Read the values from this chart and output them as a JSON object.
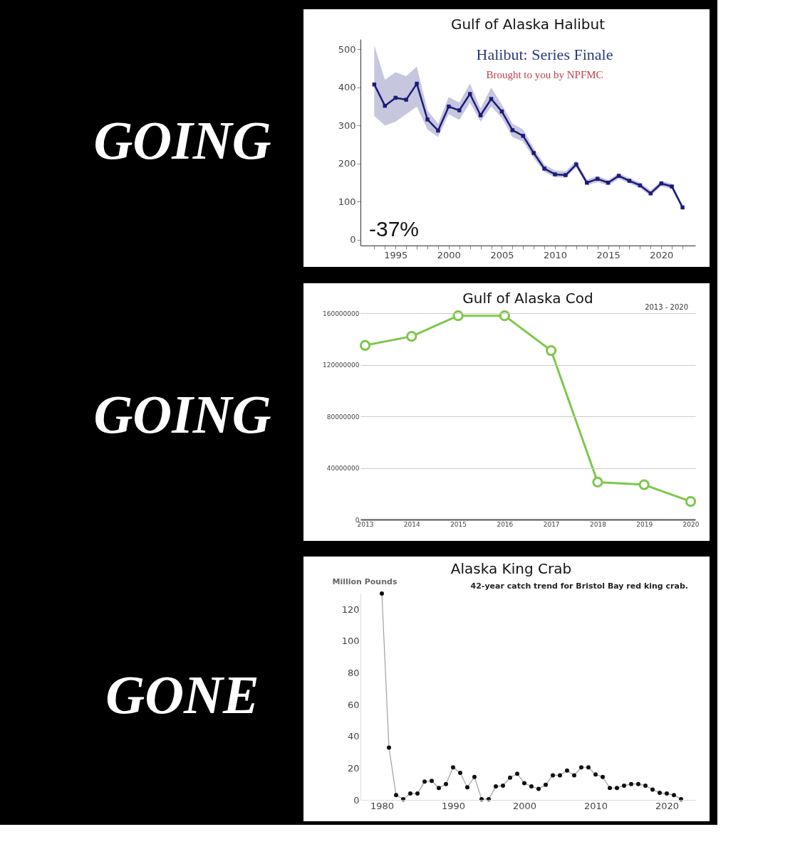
{
  "chart_data": [
    {
      "type": "line",
      "title": "Gulf of Alaska Halibut",
      "marker": "square",
      "line_style": "solid",
      "grid": false,
      "annotations": [
        "GOING",
        "Halibut: Series Finale",
        "Brought to you by NPFMC",
        "-37%"
      ],
      "x": [
        1993,
        1994,
        1995,
        1996,
        1997,
        1998,
        1999,
        2000,
        2001,
        2002,
        2003,
        2004,
        2005,
        2006,
        2007,
        2008,
        2009,
        2010,
        2011,
        2012,
        2013,
        2014,
        2015,
        2016,
        2017,
        2018,
        2019,
        2020,
        2021,
        2022
      ],
      "series": [
        {
          "color": "#1b1b7a",
          "values": [
            408,
            352,
            373,
            368,
            410,
            316,
            287,
            350,
            340,
            383,
            327,
            370,
            337,
            288,
            273,
            228,
            187,
            172,
            170,
            198,
            150,
            160,
            150,
            168,
            155,
            143,
            122,
            148,
            140,
            85
          ],
          "lower": [
            325,
            300,
            310,
            330,
            350,
            290,
            270,
            330,
            315,
            360,
            310,
            350,
            320,
            270,
            258,
            215,
            178,
            165,
            163,
            190,
            143,
            152,
            143,
            160,
            148,
            136,
            115,
            141,
            133,
            80
          ],
          "upper": [
            510,
            420,
            440,
            430,
            455,
            340,
            305,
            375,
            360,
            410,
            345,
            400,
            355,
            305,
            290,
            240,
            198,
            182,
            180,
            208,
            158,
            168,
            157,
            175,
            162,
            150,
            130,
            155,
            147,
            92
          ]
        }
      ],
      "xlim": [
        1991.7,
        2023.2
      ],
      "ylim": [
        -15,
        527
      ],
      "yticks": [
        0,
        100,
        200,
        300,
        400,
        500
      ],
      "xticks": [
        {
          "value": 1993,
          "label": null
        },
        {
          "value": 1994,
          "label": null
        },
        1995,
        {
          "value": 1996,
          "label": null
        },
        {
          "value": 1997,
          "label": null
        },
        {
          "value": 1998,
          "label": null
        },
        {
          "value": 1999,
          "label": null
        },
        2000,
        {
          "value": 2001,
          "label": null
        },
        {
          "value": 2002,
          "label": null
        },
        {
          "value": 2003,
          "label": null
        },
        {
          "value": 2004,
          "label": null
        },
        2005,
        {
          "value": 2006,
          "label": null
        },
        {
          "value": 2007,
          "label": null
        },
        {
          "value": 2008,
          "label": null
        },
        {
          "value": 2009,
          "label": null
        },
        2010,
        {
          "value": 2011,
          "label": null
        },
        {
          "value": 2012,
          "label": null
        },
        {
          "value": 2013,
          "label": null
        },
        {
          "value": 2014,
          "label": null
        },
        2015,
        {
          "value": 2016,
          "label": null
        },
        {
          "value": 2017,
          "label": null
        },
        {
          "value": 2018,
          "label": null
        },
        {
          "value": 2019,
          "label": null
        },
        2020,
        {
          "value": 2021,
          "label": null
        },
        {
          "value": 2022,
          "label": null
        }
      ]
    },
    {
      "type": "line",
      "title": "Gulf of Alaska Cod",
      "marker": "circle",
      "line_style": "solid",
      "grid": "y",
      "annotations": [
        "GOING",
        "2013 - 2020"
      ],
      "categories": [
        "2013",
        "2014",
        "2015",
        "2016",
        "2017",
        "2018",
        "2019",
        "2020"
      ],
      "series": [
        {
          "color": "#7cc84a",
          "values": [
            135000000,
            142000000,
            158000000,
            158000000,
            131000000,
            29000000,
            27000000,
            14000000
          ]
        }
      ],
      "ylim": [
        0,
        160000000
      ],
      "yticks": [
        0,
        40000000,
        80000000,
        120000000,
        160000000
      ]
    },
    {
      "type": "line",
      "title": "Alaska King Crab",
      "subtitle": "42-year catch trend for Bristol Bay red king crab.",
      "ylabel": "Million Pounds",
      "marker": "circle",
      "line_style": "solid",
      "grid": false,
      "annotations": [
        "GONE"
      ],
      "x": [
        1980,
        1981,
        1982,
        1983,
        1984,
        1985,
        1986,
        1987,
        1988,
        1989,
        1990,
        1991,
        1992,
        1993,
        1994,
        1995,
        1996,
        1997,
        1998,
        1999,
        2000,
        2001,
        2002,
        2003,
        2004,
        2005,
        2006,
        2007,
        2008,
        2009,
        2010,
        2011,
        2012,
        2013,
        2014,
        2015,
        2016,
        2017,
        2018,
        2019,
        2020,
        2021,
        2022
      ],
      "series": [
        {
          "color": "#111111",
          "values": [
            130,
            33,
            3,
            0.5,
            4,
            4,
            11.5,
            12,
            7.5,
            10,
            20.5,
            17,
            8,
            14.5,
            0.5,
            0.5,
            8.5,
            9,
            14,
            16.5,
            10.5,
            8.5,
            7,
            9.5,
            15.5,
            15.5,
            18.5,
            15.5,
            20.5,
            20.5,
            16,
            14.5,
            7.5,
            7.5,
            9,
            10,
            10,
            9,
            6.5,
            4.5,
            4,
            3,
            0.5
          ]
        }
      ],
      "xlim": [
        1977,
        2024
      ],
      "ylim": [
        0,
        130
      ],
      "xticks": [
        1980,
        1990,
        2000,
        2010,
        2020
      ],
      "yticks": [
        0,
        20,
        40,
        60,
        80,
        100,
        120
      ]
    }
  ]
}
